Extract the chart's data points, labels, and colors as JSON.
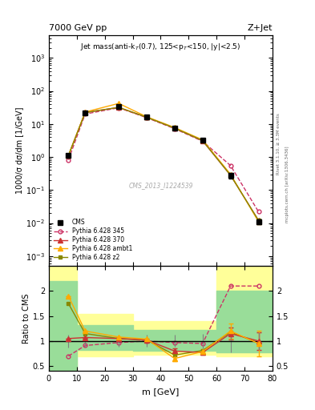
{
  "title_left": "7000 GeV pp",
  "title_right": "Z+Jet",
  "annotation": "Jet mass(anti-k$_T$(0.7), 125<p$_T$<150, |y|<2.5)",
  "ylabel_main": "1000/σ dσ/dm [1/GeV]",
  "ylabel_ratio": "Ratio to CMS",
  "xlabel": "m [GeV]",
  "watermark": "CMS_2013_I1224539",
  "rivet_text": "Rivet 3.1.10, ≥ 3.3M events",
  "arxiv_text": "mcplots.cern.ch [arXiv:1306.3436]",
  "cms_x": [
    7,
    13,
    25,
    35,
    45,
    55,
    65,
    75
  ],
  "cms_y": [
    1.1,
    22.0,
    33.0,
    16.0,
    7.5,
    3.2,
    0.27,
    0.011
  ],
  "cms_yerr": [
    0.15,
    2.5,
    3.5,
    1.8,
    0.9,
    0.45,
    0.05,
    0.002
  ],
  "p345_x": [
    7,
    13,
    25,
    35,
    45,
    55,
    65,
    75
  ],
  "p345_y": [
    0.82,
    20.0,
    31.0,
    15.5,
    7.2,
    3.0,
    0.55,
    0.022
  ],
  "p370_x": [
    7,
    13,
    25,
    35,
    45,
    55,
    65,
    75
  ],
  "p370_y": [
    1.1,
    22.5,
    31.5,
    16.0,
    7.5,
    3.1,
    0.28,
    0.012
  ],
  "ambt1_x": [
    7,
    13,
    25,
    35,
    45,
    55,
    65,
    75
  ],
  "ambt1_y": [
    1.1,
    23.0,
    42.0,
    16.5,
    7.8,
    3.3,
    0.3,
    0.011
  ],
  "z2_x": [
    7,
    13,
    25,
    35,
    45,
    55,
    65,
    75
  ],
  "z2_y": [
    1.1,
    22.0,
    32.0,
    16.0,
    7.5,
    3.15,
    0.28,
    0.012
  ],
  "ratio_p345_x": [
    7,
    13,
    25,
    35,
    45,
    55,
    65,
    75
  ],
  "ratio_p345_y": [
    0.7,
    0.91,
    0.97,
    1.0,
    0.97,
    0.95,
    2.1,
    2.1
  ],
  "ratio_p370_x": [
    7,
    13,
    25,
    35,
    45,
    55,
    65,
    75
  ],
  "ratio_p370_y": [
    1.05,
    1.07,
    1.05,
    1.02,
    0.8,
    0.77,
    1.15,
    1.0
  ],
  "ratio_ambt1_x": [
    7,
    13,
    25,
    35,
    45,
    55,
    65,
    75
  ],
  "ratio_ambt1_y": [
    1.9,
    1.2,
    1.08,
    1.04,
    0.65,
    0.79,
    1.2,
    0.95
  ],
  "ratio_z2_x": [
    7,
    13,
    25,
    35,
    45,
    55,
    65,
    75
  ],
  "ratio_z2_y": [
    1.75,
    1.15,
    1.05,
    1.02,
    0.72,
    0.81,
    1.18,
    0.96
  ],
  "ratio_cms_xerr": [
    5,
    5,
    5,
    5,
    5,
    5,
    5,
    5
  ],
  "ratio_cms_yerr": [
    0.13,
    0.12,
    0.11,
    0.12,
    0.12,
    0.14,
    0.22,
    0.18
  ],
  "ratio_p370_yerr": [
    0.0,
    0.0,
    0.0,
    0.0,
    0.05,
    0.05,
    0.12,
    0.18
  ],
  "ratio_ambt1_yerr": [
    0.0,
    0.0,
    0.0,
    0.0,
    0.05,
    0.05,
    0.15,
    0.25
  ],
  "yellow_bins": [
    0,
    10,
    30,
    60,
    80
  ],
  "yellow_lo": [
    0.35,
    0.7,
    0.72,
    0.7
  ],
  "yellow_hi": [
    2.5,
    1.55,
    1.4,
    2.5
  ],
  "green_bins": [
    0,
    10,
    30,
    60,
    80
  ],
  "green_lo": [
    0.4,
    0.82,
    0.8,
    0.78
  ],
  "green_hi": [
    2.2,
    1.32,
    1.22,
    2.0
  ],
  "color_cms": "#000000",
  "color_p345": "#cc3366",
  "color_p370": "#cc3333",
  "color_ambt1": "#ffaa00",
  "color_z2": "#888800",
  "yellow_color": "#ffff99",
  "green_color": "#99dd99",
  "ylim_main": [
    0.0005,
    5000.0
  ],
  "xlim": [
    0,
    80
  ],
  "ratio_ylim": [
    0.4,
    2.5
  ],
  "ratio_yticks": [
    0.5,
    1.0,
    1.5,
    2.0
  ]
}
